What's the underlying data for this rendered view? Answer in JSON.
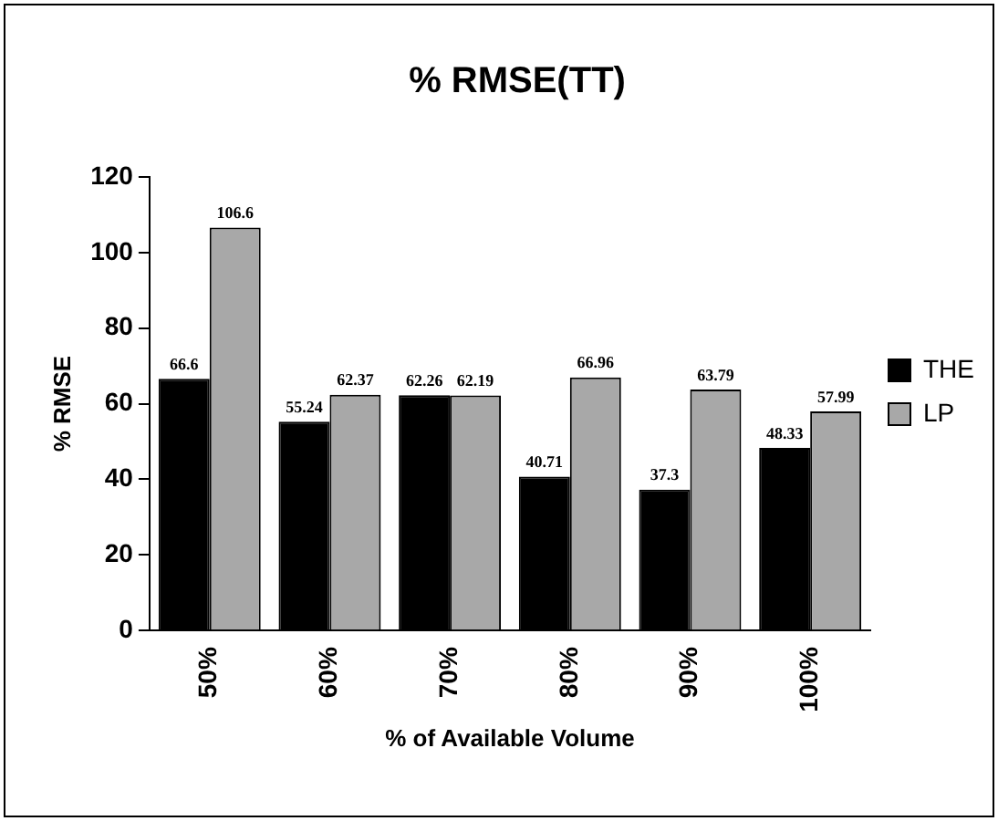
{
  "chart_data": {
    "type": "bar",
    "title": "% RMSE(TT)",
    "xlabel": "% of Available Volume",
    "ylabel": "% RMSE",
    "categories": [
      "50%",
      "60%",
      "70%",
      "80%",
      "90%",
      "100%"
    ],
    "series": [
      {
        "name": "THE",
        "color": "#000000",
        "values": [
          66.6,
          55.24,
          62.26,
          40.71,
          37.3,
          48.33
        ]
      },
      {
        "name": "LP",
        "color": "#a8a8a8",
        "values": [
          106.6,
          62.37,
          62.19,
          66.96,
          63.79,
          57.99
        ]
      }
    ],
    "ylim": [
      0,
      120
    ],
    "yticks": [
      0,
      20,
      40,
      60,
      80,
      100,
      120
    ],
    "grid": false,
    "legend": "right",
    "data_labels": true
  }
}
